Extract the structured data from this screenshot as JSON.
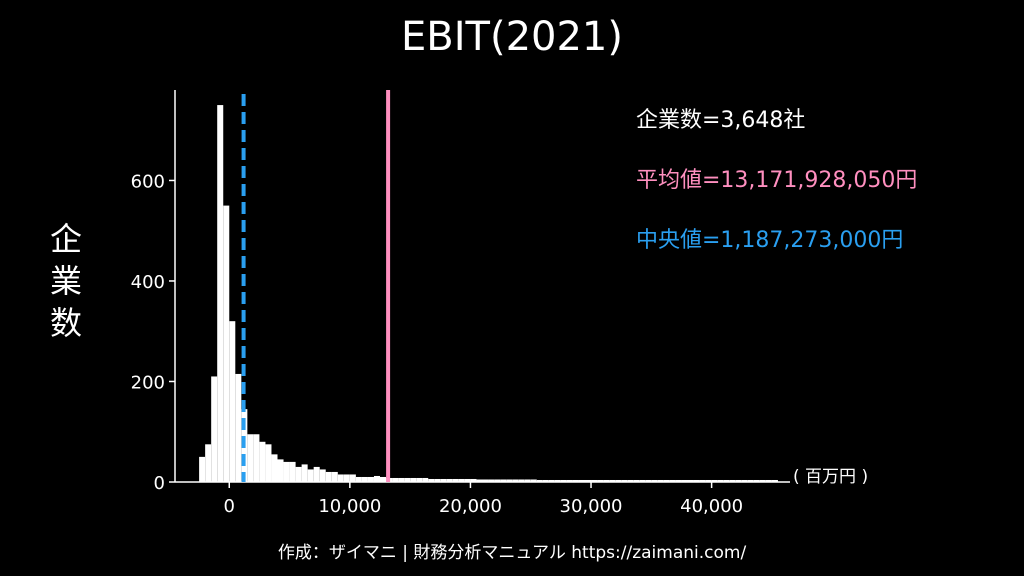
{
  "chart_data": {
    "type": "bar",
    "title": "EBIT(2021)",
    "xlabel": "( 百万円 )",
    "ylabel": [
      "企",
      "業",
      "数"
    ],
    "xlim": [
      -4500,
      46500
    ],
    "ylim": [
      0,
      780
    ],
    "bin_width": 500,
    "bins_start": -2500,
    "values": [
      50,
      75,
      210,
      750,
      550,
      320,
      215,
      145,
      95,
      95,
      80,
      75,
      55,
      45,
      40,
      40,
      30,
      35,
      25,
      30,
      25,
      20,
      20,
      15,
      15,
      15,
      10,
      10,
      10,
      12,
      10,
      8,
      8,
      8,
      8,
      8,
      8,
      8,
      6,
      6,
      6,
      6,
      6,
      6,
      6,
      6,
      5,
      5,
      5,
      5,
      5,
      5,
      5,
      5,
      5,
      5,
      4,
      4,
      4,
      4,
      4,
      4,
      4,
      4,
      4,
      4,
      4,
      4,
      4,
      4,
      4,
      4,
      4,
      4,
      4,
      4,
      4,
      4,
      4,
      4,
      4,
      4,
      4,
      4,
      4,
      4,
      4,
      4,
      4,
      4,
      4,
      4,
      4,
      4,
      4,
      4
    ],
    "yticks": [
      0,
      200,
      400,
      600
    ],
    "yticklabels": [
      "0",
      "200",
      "400",
      "600"
    ],
    "xticks": [
      0,
      10000,
      20000,
      30000,
      40000
    ],
    "xticklabels": [
      "0",
      "10,000",
      "20,000",
      "30,000",
      "40,000"
    ],
    "mean": 13171.92805,
    "median": 1187.273,
    "colors": {
      "bars": "#ffffff",
      "mean": "#ff8fbf",
      "median": "#2a9ff0",
      "axis": "#ffffff"
    }
  },
  "stats": {
    "count": "企業数=3,648社",
    "mean": "平均値=13,171,928,050円",
    "median": "中央値=1,187,273,000円"
  },
  "footer": "作成：ザイマニ | 財務分析マニュアル https://zaimani.com/"
}
